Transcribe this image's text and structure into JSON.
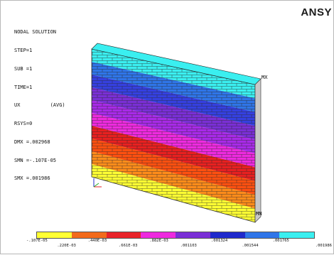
{
  "window": {
    "brand_text": "ANSY",
    "brand_accent_text": ""
  },
  "info": {
    "lines": [
      "NODAL SOLUTION",
      "STEP=1",
      "SUB =1",
      "TIME=1",
      "UX          (AVG)",
      "RSYS=0",
      "DMX =.002968",
      "SMN =-.107E-05",
      "SMX =.001986"
    ]
  },
  "markers": {
    "max": "MX",
    "min": "MN"
  },
  "legend": {
    "colors": [
      "#ffff33",
      "#f26a1b",
      "#e8232a",
      "#ee2adf",
      "#7a2fd6",
      "#1f2acc",
      "#2f75e8",
      "#3aeff0"
    ],
    "labels": [
      "-.107E-05",
      ".220E-03",
      ".440E-03",
      ".661E-03",
      ".882E-03",
      ".001103",
      ".001324",
      ".001544",
      ".001765",
      ".001986"
    ]
  },
  "model": {
    "band_colors": [
      "#ffff33",
      "#ff8c1a",
      "#ff5010",
      "#e82020",
      "#ee2adf",
      "#a82ae8",
      "#7a2fd6",
      "#3540e0",
      "#2f75e8",
      "#3aeff0"
    ]
  }
}
